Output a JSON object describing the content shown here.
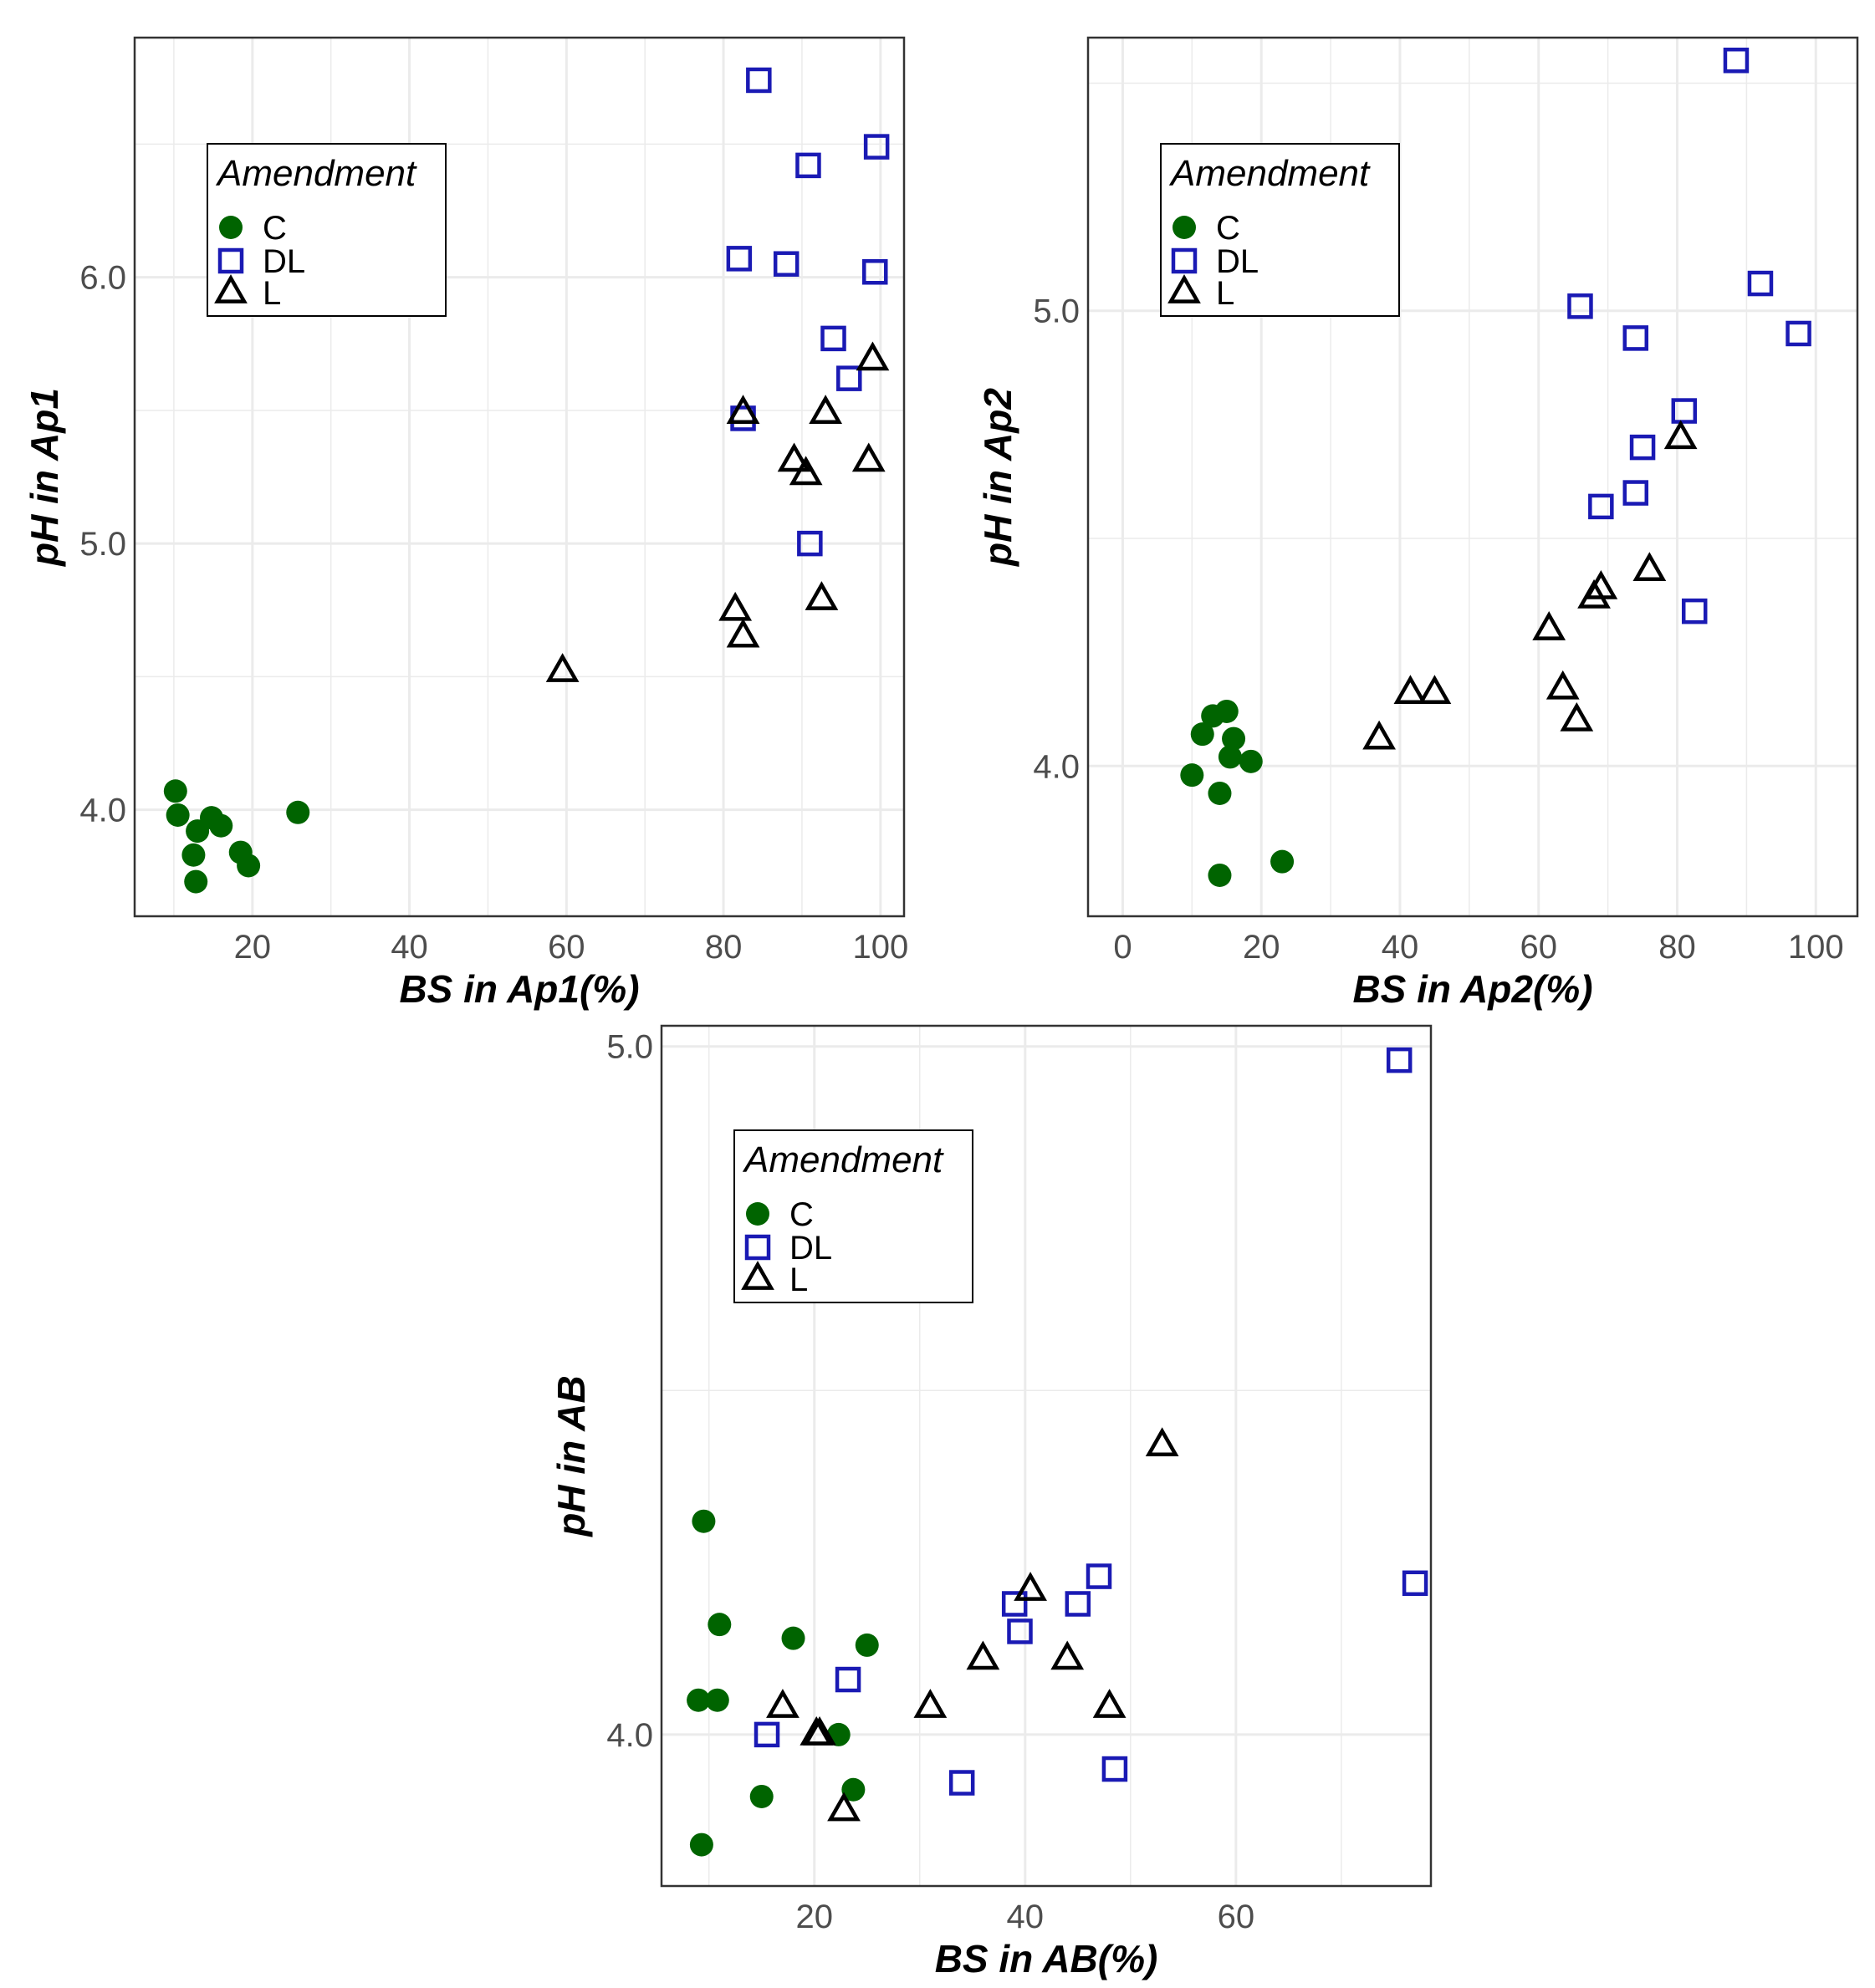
{
  "colors": {
    "C": "#006400",
    "DL": "#1a1ab4",
    "L": "#000000",
    "grid": "#ebebeb",
    "panel": "#333333"
  },
  "chart_data": [
    {
      "type": "scatter",
      "title": "",
      "xlabel": "BS in Ap1(%)",
      "ylabel": "pH in Ap1",
      "xlim": [
        5,
        103
      ],
      "ylim": [
        3.6,
        6.9
      ],
      "xticks": [
        20,
        40,
        60,
        80,
        100
      ],
      "xtick_labels": [
        "20",
        "40",
        "60",
        "80",
        "100"
      ],
      "yticks": [
        4.0,
        5.0,
        6.0
      ],
      "ytick_labels": [
        "4.0",
        "5.0",
        "6.0"
      ],
      "grid": true,
      "legend": {
        "title": "Amendment",
        "position": "top-left",
        "entries": [
          "C",
          "DL",
          "L"
        ]
      },
      "series": [
        {
          "name": "C",
          "marker": "circle",
          "points": [
            [
              10.2,
              4.07
            ],
            [
              10.5,
              3.98
            ],
            [
              12.5,
              3.83
            ],
            [
              12.8,
              3.73
            ],
            [
              13,
              3.92
            ],
            [
              14.8,
              3.97
            ],
            [
              16,
              3.94
            ],
            [
              18.5,
              3.84
            ],
            [
              19.5,
              3.79
            ],
            [
              25.8,
              3.99
            ]
          ]
        },
        {
          "name": "DL",
          "marker": "square",
          "points": [
            [
              84.5,
              6.74
            ],
            [
              90.8,
              6.42
            ],
            [
              99.5,
              6.49
            ],
            [
              82,
              6.07
            ],
            [
              88,
              6.05
            ],
            [
              99.3,
              6.02
            ],
            [
              94,
              5.77
            ],
            [
              96,
              5.62
            ],
            [
              82.5,
              5.47
            ],
            [
              91,
              5.0
            ]
          ]
        },
        {
          "name": "L",
          "marker": "triangle",
          "points": [
            [
              59.5,
              4.52
            ],
            [
              81.5,
              4.75
            ],
            [
              82.5,
              4.65
            ],
            [
              92.5,
              4.79
            ],
            [
              82.5,
              5.49
            ],
            [
              93,
              5.49
            ],
            [
              89,
              5.31
            ],
            [
              90.5,
              5.26
            ],
            [
              98.5,
              5.31
            ],
            [
              99,
              5.69
            ]
          ]
        }
      ]
    },
    {
      "type": "scatter",
      "title": "",
      "xlabel": "BS in Ap2(%)",
      "ylabel": "pH in Ap2",
      "xlim": [
        -5,
        106
      ],
      "ylim": [
        3.67,
        5.6
      ],
      "xticks": [
        0,
        20,
        40,
        60,
        80,
        100
      ],
      "xtick_labels": [
        "0",
        "20",
        "40",
        "60",
        "80",
        "100"
      ],
      "yticks": [
        4.0,
        5.0
      ],
      "ytick_labels": [
        "4.0",
        "5.0"
      ],
      "grid": true,
      "legend": {
        "title": "Amendment",
        "position": "top-left",
        "entries": [
          "C",
          "DL",
          "L"
        ]
      },
      "series": [
        {
          "name": "C",
          "marker": "circle",
          "points": [
            [
              10,
              3.98
            ],
            [
              11.5,
              4.07
            ],
            [
              13,
              4.11
            ],
            [
              14,
              3.94
            ],
            [
              14,
              3.76
            ],
            [
              15,
              4.12
            ],
            [
              15.5,
              4.02
            ],
            [
              16,
              4.06
            ],
            [
              18.5,
              4.01
            ],
            [
              23,
              3.79
            ]
          ]
        },
        {
          "name": "DL",
          "marker": "square",
          "points": [
            [
              88.5,
              5.55
            ],
            [
              92,
              5.06
            ],
            [
              97.5,
              4.95
            ],
            [
              66,
              5.01
            ],
            [
              74,
              4.94
            ],
            [
              81,
              4.78
            ],
            [
              75,
              4.7
            ],
            [
              74,
              4.6
            ],
            [
              69,
              4.57
            ],
            [
              82.5,
              4.34
            ]
          ]
        },
        {
          "name": "L",
          "marker": "triangle",
          "points": [
            [
              80.5,
              4.72
            ],
            [
              76,
              4.43
            ],
            [
              68,
              4.37
            ],
            [
              69,
              4.39
            ],
            [
              61.5,
              4.3
            ],
            [
              41.5,
              4.16
            ],
            [
              45,
              4.16
            ],
            [
              63.5,
              4.17
            ],
            [
              65.5,
              4.1
            ],
            [
              37,
              4.06
            ]
          ]
        }
      ]
    },
    {
      "type": "scatter",
      "title": "",
      "xlabel": "BS in AB(%)",
      "ylabel": "pH in AB",
      "xlim": [
        5.5,
        78.5
      ],
      "ylim": [
        3.78,
        5.03
      ],
      "xticks": [
        20,
        40,
        60
      ],
      "xtick_labels": [
        "20",
        "40",
        "60"
      ],
      "yticks": [
        4.0,
        5.0
      ],
      "ytick_labels": [
        "4.0",
        "5.0"
      ],
      "grid": true,
      "legend": {
        "title": "Amendment",
        "position": "top-left",
        "entries": [
          "C",
          "DL",
          "L"
        ]
      },
      "series": [
        {
          "name": "C",
          "marker": "circle",
          "points": [
            [
              9.5,
              4.31
            ],
            [
              11,
              4.16
            ],
            [
              18,
              4.14
            ],
            [
              25,
              4.13
            ],
            [
              9,
              4.05
            ],
            [
              10.8,
              4.05
            ],
            [
              22.3,
              4.0
            ],
            [
              15,
              3.91
            ],
            [
              23.7,
              3.92
            ],
            [
              9.3,
              3.84
            ]
          ]
        },
        {
          "name": "DL",
          "marker": "square",
          "points": [
            [
              75.5,
              4.98
            ],
            [
              77,
              4.22
            ],
            [
              47,
              4.23
            ],
            [
              45,
              4.19
            ],
            [
              39,
              4.19
            ],
            [
              39.5,
              4.15
            ],
            [
              23.2,
              4.08
            ],
            [
              15.5,
              4.0
            ],
            [
              34,
              3.93
            ],
            [
              48.5,
              3.95
            ]
          ]
        },
        {
          "name": "L",
          "marker": "triangle",
          "points": [
            [
              53,
              4.42
            ],
            [
              40.5,
              4.21
            ],
            [
              36,
              4.11
            ],
            [
              44,
              4.11
            ],
            [
              31,
              4.04
            ],
            [
              48,
              4.04
            ],
            [
              17,
              4.04
            ],
            [
              20.2,
              4.0
            ],
            [
              20.5,
              4.0
            ],
            [
              22.8,
              3.89
            ]
          ]
        }
      ]
    }
  ]
}
